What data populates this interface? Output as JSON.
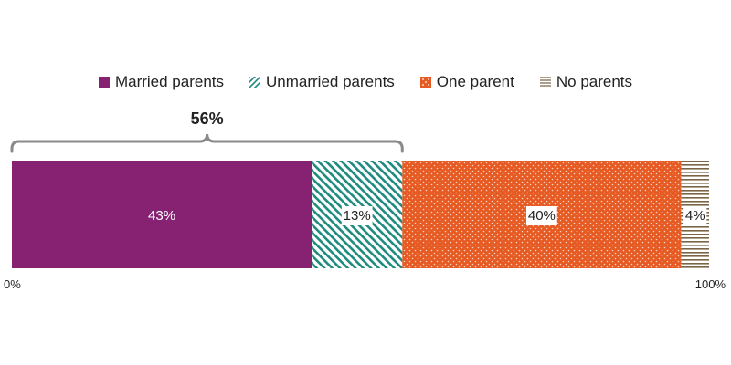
{
  "chart_data": {
    "type": "bar",
    "orientation": "horizontal-stacked",
    "xlim": [
      0,
      100
    ],
    "ticks": [
      "0%",
      "100%"
    ],
    "legend_position": "top",
    "series": [
      {
        "name": "Married parents",
        "value": 43,
        "label": "43%",
        "color": "#862271",
        "pattern": "solid"
      },
      {
        "name": "Unmarried parents",
        "value": 13,
        "label": "13%",
        "color": "#1f8a80",
        "pattern": "diagonal-stripes"
      },
      {
        "name": "One parent",
        "value": 40,
        "label": "40%",
        "color": "#e65b24",
        "pattern": "dots"
      },
      {
        "name": "No parents",
        "value": 4,
        "label": "4%",
        "color": "#7a6646",
        "pattern": "horizontal-lines"
      }
    ],
    "annotation": {
      "label": "56%",
      "from": 0,
      "to": 56
    }
  }
}
